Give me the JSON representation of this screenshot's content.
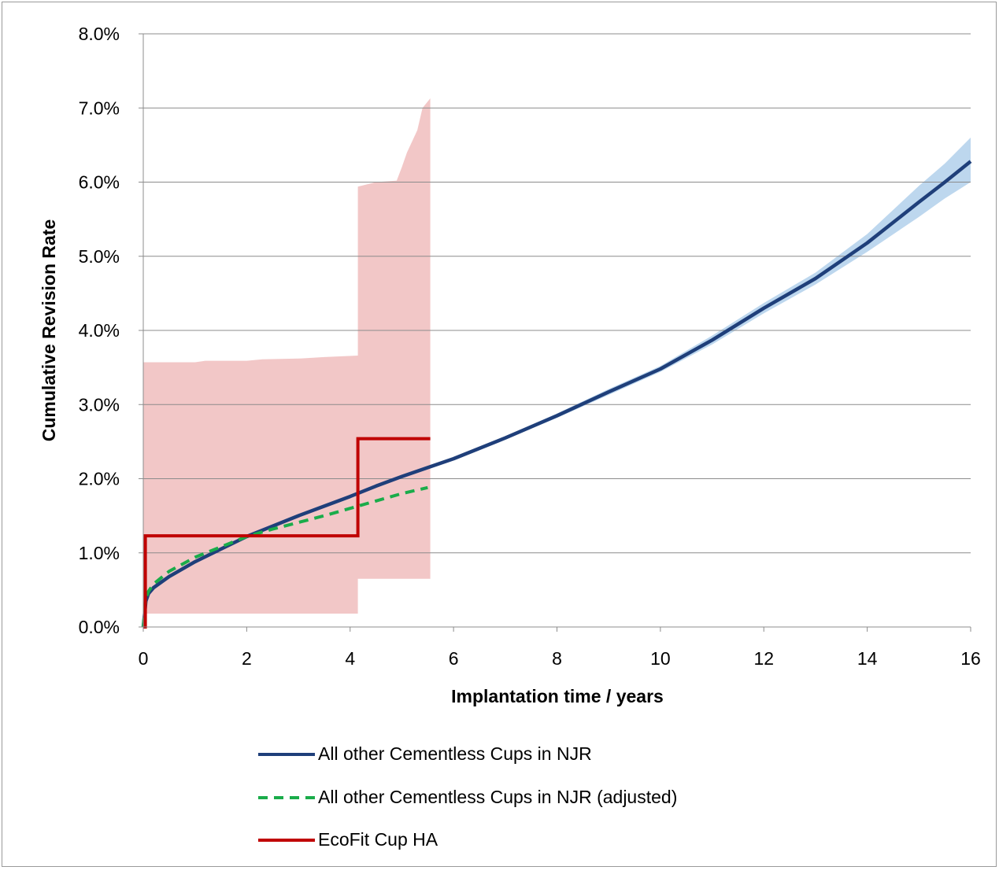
{
  "chart_data": {
    "type": "line",
    "xlabel": "Implantation time  / years",
    "ylabel": "Cumulative Revision Rate",
    "xlim": [
      0,
      16
    ],
    "ylim": [
      0,
      0.08
    ],
    "x_ticks": [
      0,
      2,
      4,
      6,
      8,
      10,
      12,
      14,
      16
    ],
    "x_tick_labels": [
      "0",
      "2",
      "4",
      "6",
      "8",
      "10",
      "12",
      "14",
      "16"
    ],
    "y_ticks": [
      0,
      0.01,
      0.02,
      0.03,
      0.04,
      0.05,
      0.06,
      0.07,
      0.08
    ],
    "y_tick_labels": [
      "0.0%",
      "1.0%",
      "2.0%",
      "3.0%",
      "4.0%",
      "5.0%",
      "6.0%",
      "7.0%",
      "8.0%"
    ],
    "grid": "horizontal",
    "legend_position": "bottom",
    "series": [
      {
        "name": "All other Cementless Cups in NJR",
        "color": "#1f3f7a",
        "style": "solid",
        "x": [
          0,
          0.05,
          0.1,
          0.2,
          0.5,
          1,
          1.5,
          2,
          2.5,
          3,
          3.5,
          4,
          4.5,
          5,
          5.5,
          6,
          7,
          8,
          9,
          10,
          11,
          12,
          13,
          14,
          15,
          15.5,
          16
        ],
        "y": [
          0,
          0.0035,
          0.0045,
          0.0053,
          0.0068,
          0.0088,
          0.0105,
          0.0122,
          0.0136,
          0.015,
          0.0163,
          0.0176,
          0.019,
          0.0203,
          0.0215,
          0.0227,
          0.0255,
          0.0285,
          0.0317,
          0.0348,
          0.0387,
          0.043,
          0.047,
          0.0518,
          0.0573,
          0.06,
          0.0628
        ],
        "ci_upper": [
          0,
          0.0037,
          0.0047,
          0.0055,
          0.007,
          0.009,
          0.0107,
          0.0124,
          0.0138,
          0.0152,
          0.0165,
          0.0178,
          0.0192,
          0.0205,
          0.0217,
          0.0229,
          0.0257,
          0.0288,
          0.0321,
          0.0352,
          0.0393,
          0.0437,
          0.0478,
          0.053,
          0.0595,
          0.0625,
          0.066
        ],
        "ci_lower": [
          0,
          0.0033,
          0.0043,
          0.0051,
          0.0066,
          0.0086,
          0.0103,
          0.012,
          0.0134,
          0.0148,
          0.0161,
          0.0174,
          0.0188,
          0.0201,
          0.0213,
          0.0225,
          0.0253,
          0.0282,
          0.0313,
          0.0344,
          0.0381,
          0.0423,
          0.0462,
          0.0506,
          0.0553,
          0.0578,
          0.06
        ]
      },
      {
        "name": "All other Cementless Cups in NJR (adjusted)",
        "color": "#1aac4a",
        "style": "dashed",
        "x": [
          0,
          0.05,
          0.1,
          0.2,
          0.5,
          1,
          1.5,
          2,
          2.5,
          3,
          3.5,
          4,
          4.5,
          5,
          5.5
        ],
        "y": [
          0,
          0.0038,
          0.0048,
          0.0058,
          0.0075,
          0.0094,
          0.0108,
          0.0122,
          0.0132,
          0.0141,
          0.015,
          0.016,
          0.017,
          0.018,
          0.0188
        ]
      },
      {
        "name": "EcoFit Cup HA",
        "color": "#c00000",
        "style": "step",
        "x": [
          0,
          0.04,
          0.04,
          4.15,
          4.15,
          5.55
        ],
        "y": [
          0,
          0,
          0.0123,
          0.0123,
          0.0254,
          0.0254
        ],
        "ci_band": {
          "color": "#f2c7c7",
          "x": [
            0,
            1.0,
            1.2,
            2.0,
            2.3,
            3.0,
            3.5,
            4.15,
            4.15,
            4.5,
            4.9,
            5.0,
            5.1,
            5.3,
            5.4,
            5.55
          ],
          "upper": [
            0.0357,
            0.0357,
            0.0359,
            0.0359,
            0.0361,
            0.0362,
            0.0364,
            0.0366,
            0.0594,
            0.06,
            0.0602,
            0.062,
            0.064,
            0.067,
            0.07,
            0.0713
          ],
          "lower": [
            0.0018,
            0.0018,
            0.0018,
            0.0018,
            0.0018,
            0.0018,
            0.0018,
            0.0018,
            0.0065,
            0.0065,
            0.0065,
            0.0065,
            0.0065,
            0.0065,
            0.0065,
            0.0065
          ]
        }
      }
    ]
  }
}
